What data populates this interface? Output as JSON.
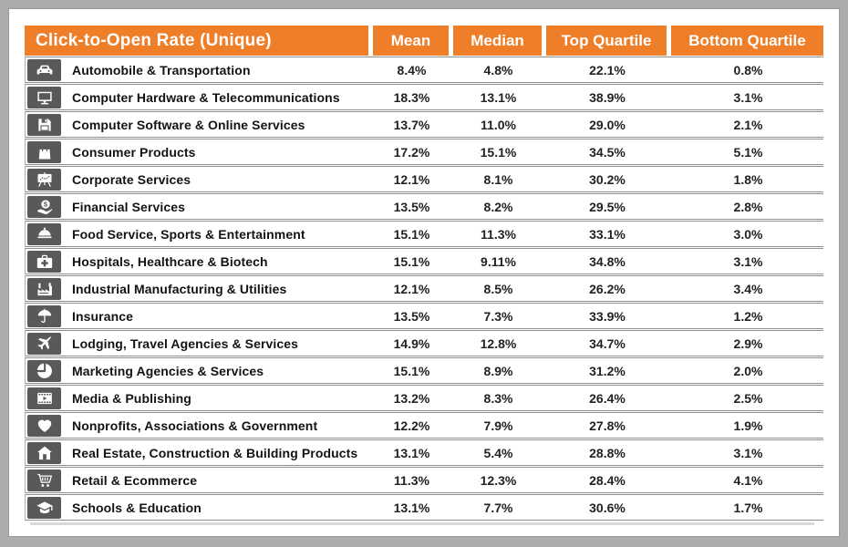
{
  "chart_data": {
    "type": "table",
    "title": "Click-to-Open Rate (Unique)",
    "columns": [
      "Mean",
      "Median",
      "Top Quartile",
      "Bottom Quartile"
    ],
    "rows": [
      {
        "icon": "automobile-icon",
        "label": "Automobile & Transportation",
        "values": [
          "8.4%",
          "4.8%",
          "22.1%",
          "0.8%"
        ]
      },
      {
        "icon": "monitor-icon",
        "label": "Computer Hardware & Telecommunications",
        "values": [
          "18.3%",
          "13.1%",
          "38.9%",
          "3.1%"
        ]
      },
      {
        "icon": "floppy-disk-icon",
        "label": "Computer Software & Online Services",
        "values": [
          "13.7%",
          "11.0%",
          "29.0%",
          "2.1%"
        ]
      },
      {
        "icon": "shopping-bag-icon",
        "label": "Consumer Products",
        "values": [
          "17.2%",
          "15.1%",
          "34.5%",
          "5.1%"
        ]
      },
      {
        "icon": "presentation-icon",
        "label": "Corporate Services",
        "values": [
          "12.1%",
          "8.1%",
          "30.2%",
          "1.8%"
        ]
      },
      {
        "icon": "hand-dollar-icon",
        "label": "Financial Services",
        "values": [
          "13.5%",
          "8.2%",
          "29.5%",
          "2.8%"
        ]
      },
      {
        "icon": "cloche-icon",
        "label": "Food Service, Sports & Entertainment",
        "values": [
          "15.1%",
          "11.3%",
          "33.1%",
          "3.0%"
        ]
      },
      {
        "icon": "first-aid-icon",
        "label": "Hospitals, Healthcare & Biotech",
        "values": [
          "15.1%",
          "9.11%",
          "34.8%",
          "3.1%"
        ]
      },
      {
        "icon": "factory-icon",
        "label": "Industrial Manufacturing & Utilities",
        "values": [
          "12.1%",
          "8.5%",
          "26.2%",
          "3.4%"
        ]
      },
      {
        "icon": "umbrella-icon",
        "label": "Insurance",
        "values": [
          "13.5%",
          "7.3%",
          "33.9%",
          "1.2%"
        ]
      },
      {
        "icon": "airplane-icon",
        "label": "Lodging, Travel Agencies & Services",
        "values": [
          "14.9%",
          "12.8%",
          "34.7%",
          "2.9%"
        ]
      },
      {
        "icon": "pie-chart-icon",
        "label": "Marketing Agencies & Services",
        "values": [
          "15.1%",
          "8.9%",
          "31.2%",
          "2.0%"
        ]
      },
      {
        "icon": "media-film-icon",
        "label": "Media & Publishing",
        "values": [
          "13.2%",
          "8.3%",
          "26.4%",
          "2.5%"
        ]
      },
      {
        "icon": "heart-icon",
        "label": "Nonprofits, Associations & Government",
        "values": [
          "12.2%",
          "7.9%",
          "27.8%",
          "1.9%"
        ]
      },
      {
        "icon": "house-icon",
        "label": "Real Estate, Construction & Building Products",
        "values": [
          "13.1%",
          "5.4%",
          "28.8%",
          "3.1%"
        ]
      },
      {
        "icon": "shopping-cart-icon",
        "label": "Retail & Ecommerce",
        "values": [
          "11.3%",
          "12.3%",
          "28.4%",
          "4.1%"
        ]
      },
      {
        "icon": "graduation-cap-icon",
        "label": "Schools & Education",
        "values": [
          "13.1%",
          "7.7%",
          "30.6%",
          "1.7%"
        ]
      }
    ]
  },
  "colors": {
    "accent_orange": "#ef7e29",
    "icon_box_gray": "#58595b",
    "frame_gray": "#acacac",
    "row_border_gray": "#8f8f8f"
  }
}
